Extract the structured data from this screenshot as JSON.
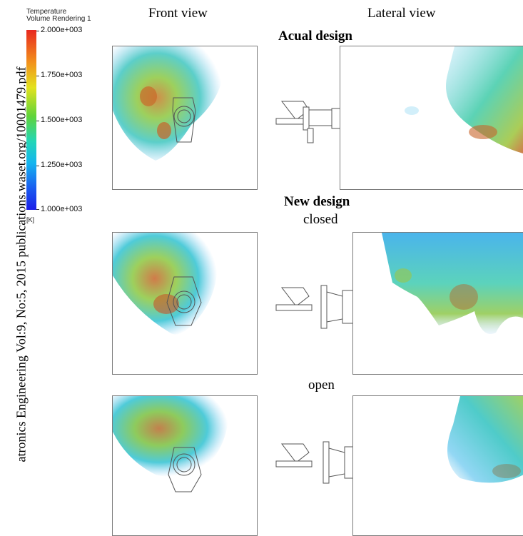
{
  "side_text": "atronics Engineering Vol:9, No:5, 2015 publications.waset.org/10001479.pdf",
  "legend": {
    "title": "Temperature",
    "subtitle": "Volume Rendering 1",
    "ticks": [
      "2.000e+003",
      "1.750e+003",
      "1.500e+003",
      "1.250e+003",
      "1.000e+003"
    ],
    "unit": "[K]"
  },
  "columns": {
    "front": "Front view",
    "lateral": "Lateral view"
  },
  "rows": {
    "actual": "Acual design",
    "new": "New design",
    "closed": "closed",
    "open": "open"
  }
}
